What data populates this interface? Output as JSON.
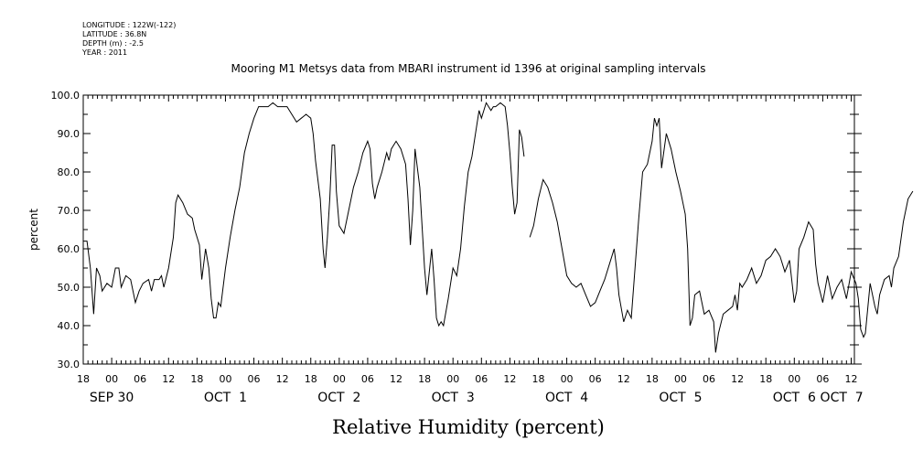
{
  "header": {
    "longitude": "LONGITUDE : 122W(-122)",
    "latitude": "LATITUDE : 36.8N",
    "depth": "DEPTH (m) : -2.5",
    "year": "YEAR : 2011"
  },
  "chart_data": {
    "type": "line",
    "title": "Mooring M1 Metsys data from MBARI instrument id 1396 at original sampling intervals",
    "ylabel": "percent",
    "xlabel": "Relative Humidity (percent)",
    "ylim": [
      30,
      100
    ],
    "yticks": [
      30,
      40,
      50,
      60,
      70,
      80,
      90,
      100
    ],
    "xlim_hours": [
      0,
      162
    ],
    "x_units": "hours since SEP 29 18:00, 2011",
    "hour_tick_labels": [
      "18",
      "00",
      "06",
      "12",
      "18",
      "00",
      "06",
      "12",
      "18",
      "00",
      "06",
      "12",
      "18",
      "00",
      "06",
      "12",
      "18",
      "00",
      "06",
      "12",
      "18",
      "00",
      "06",
      "12",
      "18",
      "00",
      "06",
      "12"
    ],
    "day_labels": [
      {
        "text": "SEP 30",
        "hour": 6
      },
      {
        "text": "OCT  1",
        "hour": 30
      },
      {
        "text": "OCT  2",
        "hour": 54
      },
      {
        "text": "OCT  3",
        "hour": 78
      },
      {
        "text": "OCT  4",
        "hour": 102
      },
      {
        "text": "OCT  5",
        "hour": 126
      },
      {
        "text": "OCT  6",
        "hour": 150
      },
      {
        "text": "OCT  7",
        "hour": 160
      }
    ],
    "grid": false,
    "series": [
      {
        "segments": [
          [
            [
              0,
              62
            ],
            [
              0.8,
              62
            ],
            [
              1.5,
              55
            ],
            [
              2.2,
              43
            ],
            [
              2.8,
              55
            ],
            [
              3.5,
              53
            ],
            [
              4,
              49
            ],
            [
              5,
              51
            ],
            [
              6,
              50
            ],
            [
              6.8,
              55
            ],
            [
              7.5,
              55
            ],
            [
              8,
              50
            ],
            [
              9,
              53
            ],
            [
              10,
              52
            ],
            [
              11,
              46
            ],
            [
              11.8,
              49
            ],
            [
              12.6,
              51
            ],
            [
              13.8,
              52
            ],
            [
              14.4,
              49
            ],
            [
              15,
              52
            ],
            [
              16,
              52
            ],
            [
              16.5,
              53
            ],
            [
              17,
              50
            ],
            [
              18,
              55
            ],
            [
              19,
              63
            ],
            [
              19.5,
              72
            ],
            [
              20,
              74
            ],
            [
              21,
              72
            ],
            [
              22,
              69
            ],
            [
              23,
              68
            ],
            [
              23.5,
              65
            ],
            [
              24,
              63
            ],
            [
              24.5,
              61
            ],
            [
              25,
              52
            ],
            [
              25.8,
              60
            ],
            [
              26.5,
              55
            ],
            [
              27,
              47
            ],
            [
              27.5,
              42
            ],
            [
              28,
              42
            ],
            [
              28.5,
              46
            ],
            [
              29,
              45
            ],
            [
              30,
              55
            ],
            [
              31,
              63
            ],
            [
              32,
              70
            ],
            [
              33,
              76
            ],
            [
              34,
              85
            ],
            [
              35,
              90
            ],
            [
              36,
              94
            ],
            [
              37,
              97
            ],
            [
              38,
              97
            ],
            [
              39,
              97
            ],
            [
              40,
              98
            ],
            [
              41,
              97
            ],
            [
              42,
              97
            ],
            [
              43,
              97
            ],
            [
              44,
              95
            ],
            [
              45,
              93
            ],
            [
              46,
              94
            ],
            [
              47,
              95
            ],
            [
              48,
              94
            ],
            [
              48.5,
              90
            ],
            [
              49,
              83
            ],
            [
              50,
              73
            ],
            [
              50.6,
              60
            ],
            [
              51,
              55
            ],
            [
              51.5,
              63
            ],
            [
              52,
              73
            ],
            [
              52.5,
              87
            ],
            [
              53,
              87
            ],
            [
              53.4,
              75
            ],
            [
              54,
              66
            ],
            [
              55,
              64
            ],
            [
              56,
              70
            ],
            [
              57,
              76
            ],
            [
              58,
              80
            ],
            [
              59,
              85
            ],
            [
              60,
              88
            ],
            [
              60.5,
              86
            ],
            [
              61,
              77
            ],
            [
              61.5,
              73
            ],
            [
              62,
              76
            ],
            [
              63,
              80
            ],
            [
              64,
              85
            ],
            [
              64.5,
              83
            ],
            [
              65,
              86
            ],
            [
              66,
              88
            ],
            [
              67,
              86
            ],
            [
              68,
              82
            ],
            [
              68.5,
              73
            ],
            [
              69,
              61
            ],
            [
              69.5,
              70
            ],
            [
              70,
              86
            ],
            [
              71,
              76
            ],
            [
              72,
              55
            ],
            [
              72.5,
              48
            ],
            [
              73,
              54
            ],
            [
              73.5,
              60
            ],
            [
              74,
              52
            ],
            [
              74.5,
              42
            ],
            [
              75,
              40
            ],
            [
              75.5,
              41
            ],
            [
              76,
              40
            ],
            [
              77,
              47
            ],
            [
              78,
              55
            ],
            [
              78.8,
              53
            ],
            [
              79.6,
              60
            ],
            [
              80.4,
              71
            ],
            [
              81.2,
              80
            ],
            [
              82,
              84
            ],
            [
              82.5,
              88
            ],
            [
              83,
              92
            ],
            [
              83.5,
              96
            ],
            [
              84,
              94
            ],
            [
              85,
              98
            ],
            [
              86,
              96
            ],
            [
              86.5,
              97
            ],
            [
              87,
              97
            ],
            [
              88,
              98
            ],
            [
              89,
              97
            ],
            [
              89.5,
              92
            ],
            [
              90,
              85
            ],
            [
              90.5,
              76
            ],
            [
              91,
              69
            ],
            [
              91.5,
              72
            ],
            [
              92,
              91
            ],
            [
              92.5,
              89
            ],
            [
              93,
              84
            ]
          ],
          [
            [
              94.2,
              63
            ],
            [
              95,
              66
            ],
            [
              96,
              73
            ],
            [
              97,
              78
            ],
            [
              98,
              76
            ],
            [
              99,
              72
            ],
            [
              100,
              67
            ],
            [
              101,
              60
            ],
            [
              102,
              53
            ],
            [
              103,
              51
            ],
            [
              104,
              50
            ],
            [
              105,
              51
            ],
            [
              106,
              48
            ],
            [
              107,
              45
            ],
            [
              108,
              46
            ],
            [
              109,
              49
            ],
            [
              110,
              52
            ],
            [
              111,
              56
            ],
            [
              112,
              60
            ],
            [
              112.5,
              55
            ],
            [
              113,
              48
            ],
            [
              114,
              41
            ],
            [
              114.8,
              44
            ],
            [
              115.6,
              42
            ],
            [
              116.4,
              55
            ],
            [
              117.2,
              68
            ],
            [
              118,
              80
            ],
            [
              119,
              82
            ],
            [
              120,
              88
            ],
            [
              120.5,
              94
            ],
            [
              121,
              92
            ],
            [
              121.5,
              94
            ],
            [
              122,
              81
            ],
            [
              123,
              90
            ],
            [
              124,
              86
            ],
            [
              125,
              80
            ],
            [
              126,
              75
            ],
            [
              127,
              69
            ],
            [
              127.5,
              60
            ],
            [
              128,
              40
            ],
            [
              128.5,
              42
            ],
            [
              129,
              48
            ],
            [
              130,
              49
            ],
            [
              131,
              43
            ],
            [
              132,
              44
            ],
            [
              133,
              41
            ],
            [
              133.4,
              33
            ],
            [
              134,
              38
            ],
            [
              135,
              43
            ],
            [
              136,
              44
            ],
            [
              137,
              45
            ],
            [
              137.5,
              48
            ],
            [
              138,
              44
            ],
            [
              138.5,
              51
            ],
            [
              139,
              50
            ],
            [
              140,
              52
            ],
            [
              141,
              55
            ],
            [
              142,
              51
            ],
            [
              143,
              53
            ],
            [
              144,
              57
            ],
            [
              145,
              58
            ],
            [
              146,
              60
            ],
            [
              147,
              58
            ],
            [
              148,
              54
            ],
            [
              149,
              57
            ],
            [
              150,
              46
            ],
            [
              150.5,
              49
            ],
            [
              151,
              60
            ],
            [
              152,
              63
            ],
            [
              153,
              67
            ],
            [
              154,
              65
            ],
            [
              154.5,
              56
            ],
            [
              155,
              51
            ],
            [
              156,
              46
            ],
            [
              157,
              53
            ],
            [
              158,
              47
            ],
            [
              159,
              50
            ],
            [
              160,
              52
            ],
            [
              161,
              47
            ],
            [
              162,
              54
            ],
            [
              163,
              51
            ],
            [
              163.5,
              47
            ],
            [
              164,
              39
            ],
            [
              164.6,
              37
            ],
            [
              165,
              38
            ],
            [
              166,
              51
            ],
            [
              167,
              45
            ],
            [
              167.5,
              43
            ],
            [
              168,
              48
            ],
            [
              169,
              52
            ],
            [
              170,
              53
            ],
            [
              170.5,
              50
            ],
            [
              171,
              55
            ],
            [
              172,
              58
            ],
            [
              173,
              67
            ],
            [
              173.5,
              70
            ],
            [
              174,
              73
            ],
            [
              175,
              75
            ]
          ]
        ]
      }
    ]
  }
}
